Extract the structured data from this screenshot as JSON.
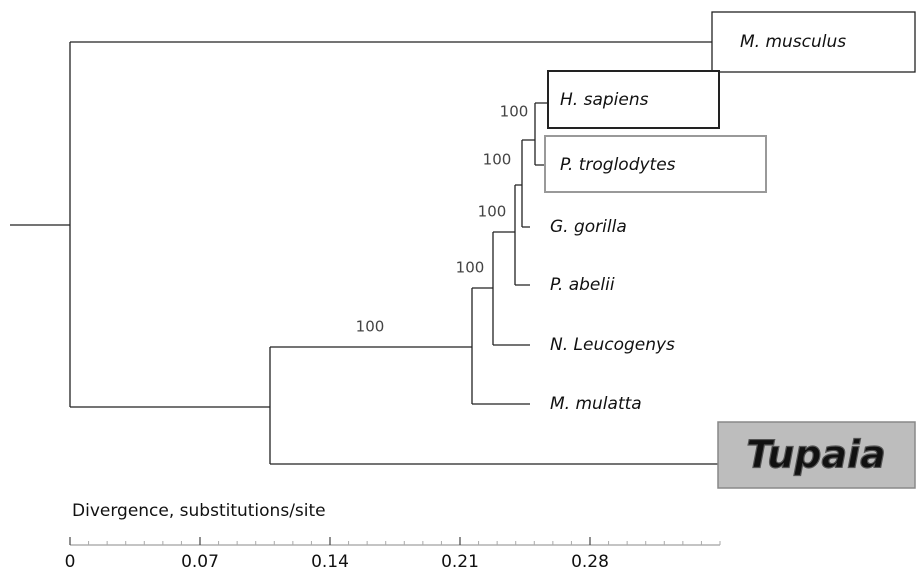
{
  "taxa": [
    "M. musculus",
    "H. sapiens",
    "P. troglodytes",
    "G. gorilla",
    "P. abelii",
    "N. Leucogenys",
    "M. mulatta",
    "Tupaia"
  ],
  "bootstrap": [
    100,
    100,
    100,
    100,
    100
  ],
  "scale": {
    "label": "Divergence, substitutions/site",
    "range": [
      0,
      0.35
    ],
    "ticks": [
      0,
      0.07,
      0.14,
      0.21,
      0.28
    ]
  }
}
